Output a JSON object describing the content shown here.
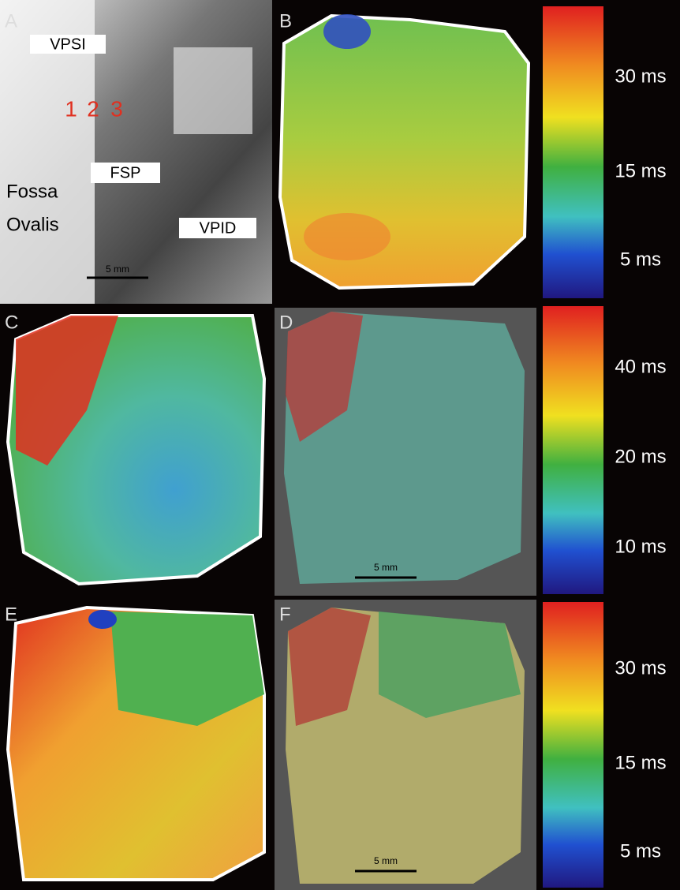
{
  "panels": [
    {
      "letter": "A",
      "annotations": [
        "VPSI",
        "1",
        "2",
        "3",
        "FSP",
        "Fossa",
        "Ovalis",
        "VPID"
      ],
      "scale_bar": "5 mm"
    },
    {
      "letter": "B"
    },
    {
      "letter": "C"
    },
    {
      "letter": "D",
      "scale_bar": "5 mm"
    },
    {
      "letter": "E"
    },
    {
      "letter": "F",
      "scale_bar": "5 mm"
    }
  ],
  "colorbars": [
    {
      "labels": [
        "30 ms",
        "15 ms",
        "5 ms"
      ]
    },
    {
      "labels": [
        "40 ms",
        "20 ms",
        "10 ms"
      ]
    },
    {
      "labels": [
        "30 ms",
        "15 ms",
        "5 ms"
      ]
    }
  ]
}
